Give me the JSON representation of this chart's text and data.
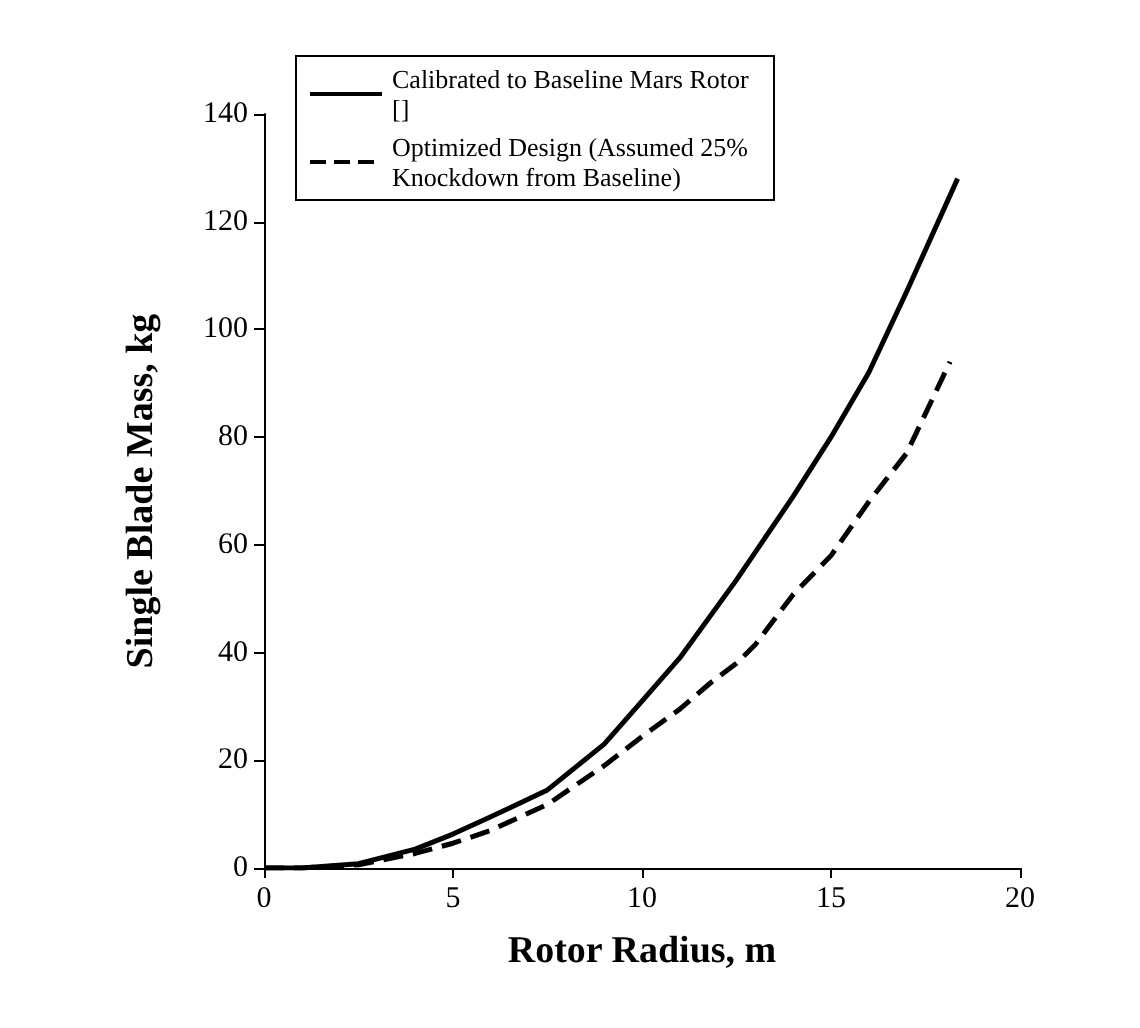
{
  "chart_data": {
    "type": "line",
    "xlabel": "Rotor Radius, m",
    "ylabel": "Single Blade Mass, kg",
    "xlim": [
      0,
      20
    ],
    "xticks": [
      0,
      5,
      10,
      15,
      20
    ],
    "ylim": [
      0,
      140
    ],
    "yticks": [
      0,
      20,
      40,
      60,
      80,
      100,
      120,
      140
    ],
    "grid": false,
    "legend": "top left",
    "marker": "none",
    "series": [
      {
        "name": "Calibrated to Baseline Mars Rotor []",
        "color": "#000000",
        "line_style": "solid",
        "x": [
          0,
          1,
          2.5,
          4,
          5,
          6,
          7.5,
          9,
          10,
          11,
          12.5,
          14,
          15,
          16,
          17,
          18.35
        ],
        "values": [
          0,
          0,
          0.8,
          3.5,
          6.3,
          9.5,
          14.5,
          23,
          31,
          39,
          53.5,
          69,
          80,
          92,
          107,
          128
        ]
      },
      {
        "name": "Optimized Design (Assumed 25% Knockdown from Baseline)",
        "color": "#000000",
        "line_style": "dashed",
        "x": [
          0,
          1,
          2.5,
          4,
          5,
          6,
          7.5,
          9,
          10,
          11,
          11.8,
          12.5,
          13,
          14,
          15,
          16,
          17,
          18.15
        ],
        "values": [
          0,
          0,
          0.6,
          2.7,
          4.6,
          7,
          11.8,
          19,
          24.4,
          29.5,
          34.3,
          38,
          41.5,
          50.8,
          58,
          68,
          77,
          94
        ]
      }
    ]
  }
}
